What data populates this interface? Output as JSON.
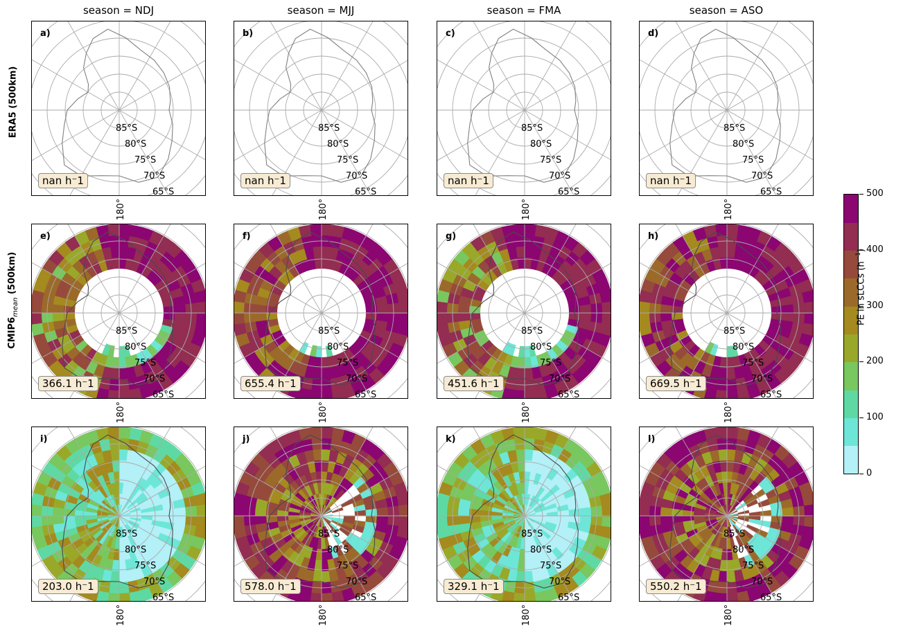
{
  "columns": [
    "season = NDJ",
    "season = MJJ",
    "season = FMA",
    "season = ASO"
  ],
  "rows": [
    {
      "label": "ERA5 (500km)",
      "panels": [
        {
          "id": "a)",
          "value": "nan h⁻1",
          "pattern": "none"
        },
        {
          "id": "b)",
          "value": "nan h⁻1",
          "pattern": "none"
        },
        {
          "id": "c)",
          "value": "nan h⁻1",
          "pattern": "none"
        },
        {
          "id": "d)",
          "value": "nan h⁻1",
          "pattern": "none"
        }
      ]
    },
    {
      "label": "CMIP6mean (500km)",
      "label_main": "CMIP6",
      "label_sub": "mean",
      "label_tail": " (500km)",
      "panels": [
        {
          "id": "e)",
          "value": "366.1 h⁻1",
          "pattern": "ring-mixed"
        },
        {
          "id": "f)",
          "value": "655.4 h⁻1",
          "pattern": "ring-high"
        },
        {
          "id": "g)",
          "value": "451.6 h⁻1",
          "pattern": "ring-mixed"
        },
        {
          "id": "h)",
          "value": "669.5 h⁻1",
          "pattern": "ring-high"
        }
      ]
    },
    {
      "label": "",
      "panels": [
        {
          "id": "i)",
          "value": "203.0 h⁻1",
          "pattern": "full-low"
        },
        {
          "id": "j)",
          "value": "578.0 h⁻1",
          "pattern": "full-high"
        },
        {
          "id": "k)",
          "value": "329.1 h⁻1",
          "pattern": "full-low"
        },
        {
          "id": "l)",
          "value": "550.2 h⁻1",
          "pattern": "full-high"
        }
      ]
    }
  ],
  "lat_labels": [
    "85°S",
    "80°S",
    "75°S",
    "70°S",
    "65°S"
  ],
  "lon_label": "180°",
  "colorbar": {
    "title": "PE in sLCCs (h⁻1)",
    "title_main": "PE in sLCCs (h",
    "title_sup": "−1",
    "title_tail": ")",
    "min": 0,
    "max": 500,
    "ticks": [
      "0",
      "100",
      "200",
      "300",
      "400",
      "500"
    ],
    "colors": [
      "#b3f0f7",
      "#6de6d8",
      "#5fd9a3",
      "#79c75f",
      "#9aa82a",
      "#a48a1f",
      "#9b6a2a",
      "#964a3c",
      "#932d52",
      "#8b0671"
    ]
  }
}
